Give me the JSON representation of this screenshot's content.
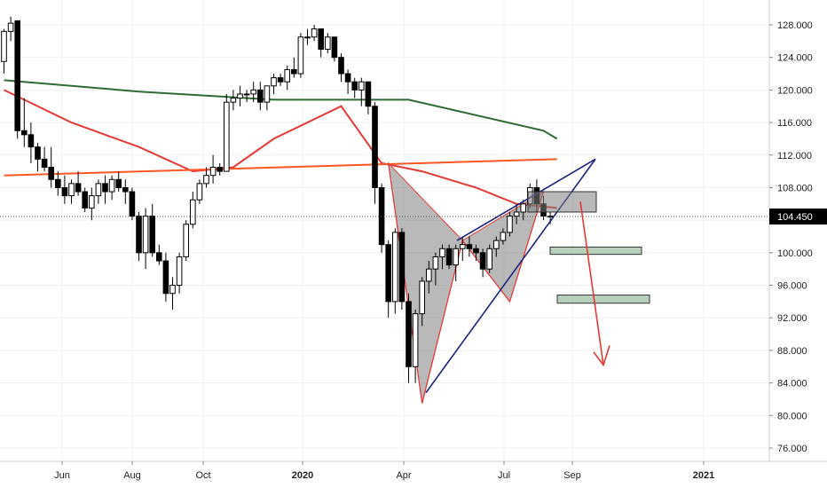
{
  "chart_data": {
    "type": "candlestick",
    "y_range": [
      74,
      130
    ],
    "y_ticks": [
      "76.000",
      "80.000",
      "84.000",
      "88.000",
      "92.000",
      "96.000",
      "100.000",
      "104.000",
      "108.000",
      "112.000",
      "116.000",
      "120.000",
      "124.000",
      "128.000"
    ],
    "y_tick_values": [
      76,
      80,
      84,
      88,
      92,
      96,
      100,
      104,
      108,
      112,
      116,
      120,
      124,
      128
    ],
    "x_ticks": [
      {
        "label": "Jun",
        "bold": false
      },
      {
        "label": "Aug",
        "bold": false
      },
      {
        "label": "Oct",
        "bold": false
      },
      {
        "label": "2020",
        "bold": true
      },
      {
        "label": "Apr",
        "bold": false
      },
      {
        "label": "Jul",
        "bold": false
      },
      {
        "label": "Sep",
        "bold": false
      },
      {
        "label": "2021",
        "bold": true
      }
    ],
    "last_price": {
      "label": "104.450",
      "value": 104.45,
      "color": "#000000"
    },
    "grid": true,
    "candles": [
      [
        123.5,
        127.5,
        122,
        127.2
      ],
      [
        127.2,
        129,
        126,
        128.2
      ],
      [
        128.5,
        128.5,
        114,
        115
      ],
      [
        115,
        119,
        113,
        114.5
      ],
      [
        114.5,
        116,
        111,
        113
      ],
      [
        113,
        113.5,
        110,
        111.5
      ],
      [
        111.5,
        113,
        110,
        110.5
      ],
      [
        110.5,
        113,
        108,
        109
      ],
      [
        109,
        110,
        107,
        108
      ],
      [
        108,
        109.5,
        106,
        107
      ],
      [
        107,
        109,
        106,
        108.5
      ],
      [
        108.5,
        110,
        107,
        107.5
      ],
      [
        107.5,
        108,
        105,
        105.5
      ],
      [
        105.5,
        108,
        104,
        107
      ],
      [
        107,
        109,
        106,
        108.5
      ],
      [
        108.5,
        109.5,
        106,
        107.5
      ],
      [
        107.5,
        109.5,
        106.5,
        109
      ],
      [
        109,
        110,
        107.5,
        108
      ],
      [
        108,
        109,
        106,
        107.5
      ],
      [
        107.5,
        108,
        104,
        104.5
      ],
      [
        104.5,
        105,
        99,
        100
      ],
      [
        100,
        105.5,
        98,
        104.5
      ],
      [
        104.5,
        106,
        99.5,
        100
      ],
      [
        100,
        101,
        98.5,
        99
      ],
      [
        99,
        100,
        94,
        95
      ],
      [
        95,
        97,
        93,
        96
      ],
      [
        96,
        100,
        95,
        99.5
      ],
      [
        99.5,
        104,
        99,
        103.5
      ],
      [
        103.5,
        107.5,
        103,
        106.5
      ],
      [
        106.5,
        109,
        106,
        108.5
      ],
      [
        108.5,
        110.5,
        108,
        109.5
      ],
      [
        109.5,
        112,
        108.5,
        110.5
      ],
      [
        110.5,
        111,
        109.5,
        110
      ],
      [
        110,
        119.5,
        110,
        118.5
      ],
      [
        118.5,
        120,
        117.5,
        119
      ],
      [
        119,
        120.5,
        118,
        119.5
      ],
      [
        119.5,
        120,
        118.5,
        119.5
      ],
      [
        119.5,
        121,
        118.5,
        120
      ],
      [
        120,
        121,
        117.5,
        118.5
      ],
      [
        118.5,
        120.5,
        117.5,
        120.5
      ],
      [
        120.5,
        122,
        119.5,
        121.5
      ],
      [
        121.5,
        122,
        120.5,
        121
      ],
      [
        121,
        123,
        120,
        122.5
      ],
      [
        122.5,
        124,
        121.5,
        122
      ],
      [
        122,
        127,
        121.5,
        126.5
      ],
      [
        126.5,
        127.5,
        125.5,
        126.5
      ],
      [
        126.5,
        128,
        126,
        127.5
      ],
      [
        127.5,
        127.5,
        124,
        125
      ],
      [
        125,
        127,
        124.5,
        126.5
      ],
      [
        126.5,
        126.5,
        123.5,
        124
      ],
      [
        124,
        124.5,
        121,
        122
      ],
      [
        122,
        122.5,
        119.5,
        121
      ],
      [
        121,
        121.5,
        119,
        120
      ],
      [
        120,
        121.5,
        118,
        121
      ],
      [
        121,
        121,
        117,
        118
      ],
      [
        118,
        118.5,
        106,
        108
      ],
      [
        108,
        108.5,
        100,
        101
      ],
      [
        101,
        101.5,
        92,
        94
      ],
      [
        94,
        103,
        92.5,
        102.5
      ],
      [
        102.5,
        103,
        93,
        94
      ],
      [
        94,
        95,
        84,
        86
      ],
      [
        86,
        93,
        84,
        92.5
      ],
      [
        92.5,
        97,
        91,
        96.5
      ],
      [
        96.5,
        99,
        95,
        98
      ],
      [
        98,
        100,
        96,
        99.5
      ],
      [
        99.5,
        101,
        98,
        100.5
      ],
      [
        100.5,
        101,
        98,
        98.5
      ],
      [
        98.5,
        101,
        96.5,
        100.5
      ],
      [
        100.5,
        102,
        99,
        101
      ],
      [
        101,
        102,
        99.5,
        100.5
      ],
      [
        100.5,
        101,
        99,
        100
      ],
      [
        100,
        100.5,
        97,
        98
      ],
      [
        98,
        101,
        97.5,
        100.5
      ],
      [
        100.5,
        102,
        99.5,
        101.5
      ],
      [
        101.5,
        103,
        101,
        102.5
      ],
      [
        102.5,
        105,
        102,
        104.5
      ],
      [
        104.5,
        106,
        103.5,
        105
      ],
      [
        105,
        106.5,
        104,
        106
      ],
      [
        106,
        108.5,
        105.5,
        108
      ],
      [
        108,
        109,
        105,
        106
      ],
      [
        106,
        107,
        104,
        104.5
      ],
      [
        104.5,
        105,
        103.5,
        104.45
      ]
    ],
    "series": [
      {
        "name": "",
        "color": "#2e6b34",
        "x": [
          0,
          20,
          40,
          60,
          80,
          82
        ],
        "values": [
          121.2,
          119.8,
          118.8,
          118.8,
          115,
          114
        ]
      },
      {
        "name": "",
        "color": "#e53935",
        "x": [
          0,
          10,
          20,
          28,
          34,
          40,
          50,
          56,
          62,
          70,
          76,
          82
        ],
        "values": [
          120,
          116,
          113,
          110,
          110.5,
          114,
          118,
          111,
          110,
          108,
          106,
          105.5
        ]
      },
      {
        "name": "",
        "color": "#ff5722",
        "x": [
          0,
          82
        ],
        "values": [
          109.5,
          111.5
        ]
      }
    ]
  },
  "annotations": {
    "pattern_color": "#e53935",
    "pattern_fill": "#808080",
    "wedge_color": "#1a237e",
    "zone_fill": "#9bbd9f",
    "arrow_color": "#e53935"
  }
}
